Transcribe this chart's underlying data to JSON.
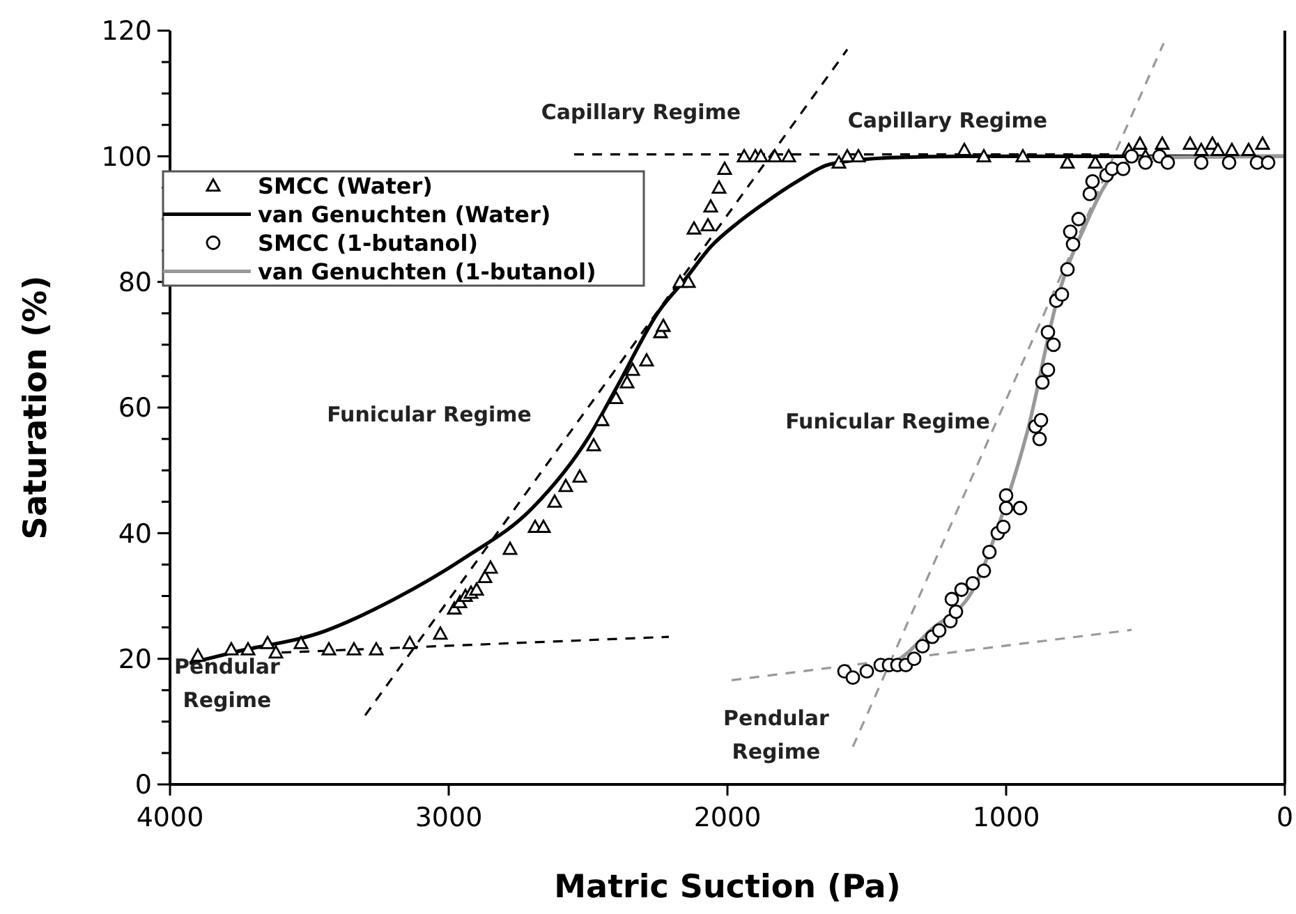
{
  "chart_data": {
    "type": "scatter",
    "xlabel": "Matric Suction (Pa)",
    "ylabel": "Saturation (%)",
    "xlim": [
      4000,
      0
    ],
    "xticks": [
      4000,
      3000,
      2000,
      1000,
      0
    ],
    "ylim": [
      0,
      120
    ],
    "yticks": [
      0,
      {
        "value": 5,
        "label": null
      },
      {
        "value": 10,
        "label": null
      },
      {
        "value": 15,
        "label": null
      },
      20,
      {
        "value": 25,
        "label": null
      },
      {
        "value": 30,
        "label": null
      },
      {
        "value": 35,
        "label": null
      },
      40,
      {
        "value": 45,
        "label": null
      },
      {
        "value": 50,
        "label": null
      },
      {
        "value": 55,
        "label": null
      },
      60,
      {
        "value": 65,
        "label": null
      },
      {
        "value": 70,
        "label": null
      },
      {
        "value": 75,
        "label": null
      },
      80,
      {
        "value": 85,
        "label": null
      },
      {
        "value": 90,
        "label": null
      },
      {
        "value": 95,
        "label": null
      },
      100,
      {
        "value": 105,
        "label": null
      },
      {
        "value": 110,
        "label": null
      },
      {
        "value": 115,
        "label": null
      },
      120
    ],
    "grid": false,
    "legend": "top left",
    "series": [
      {
        "name": "SMCC (Water)",
        "marker": "triangle",
        "color": "#000000",
        "x": [
          3900,
          3780,
          3720,
          3650,
          3620,
          3530,
          3430,
          3340,
          3260,
          3140,
          3030,
          2980,
          2960,
          2940,
          2920,
          2900,
          2870,
          2850,
          2780,
          2690,
          2660,
          2620,
          2580,
          2530,
          2480,
          2450,
          2400,
          2360,
          2340,
          2290,
          2240,
          2230,
          2170,
          2140,
          2120,
          2070,
          2060,
          2030,
          2010,
          1940,
          1900,
          1880,
          1830,
          1780,
          1600,
          1570,
          1530,
          1150,
          1080,
          940,
          780,
          680,
          560,
          520,
          500,
          440,
          340,
          300,
          260,
          240,
          190,
          130,
          80
        ],
        "values": [
          20.5,
          21.5,
          21.5,
          22.5,
          21,
          22.5,
          21.5,
          21.5,
          21.5,
          22.5,
          24,
          28,
          29,
          30,
          30.5,
          31,
          33,
          34.5,
          37.5,
          41,
          41,
          45,
          47.5,
          49,
          54,
          58,
          61.5,
          64,
          66,
          67.5,
          72,
          73,
          80,
          80,
          88.5,
          89,
          92,
          95,
          98,
          100,
          100,
          100,
          100,
          100,
          99,
          100,
          100,
          101,
          100,
          100,
          99,
          99,
          101,
          102,
          100,
          102,
          102,
          101,
          102,
          101,
          101,
          101,
          102
        ]
      },
      {
        "name": "van Genuchten (Water)",
        "type": "line",
        "line_style": "solid",
        "color": "#000000",
        "x": [
          3930,
          3775,
          3445,
          3195,
          2945,
          2700,
          2495,
          2400,
          2245,
          2150,
          2060,
          1960,
          1875,
          1750,
          1625,
          1400,
          1150,
          0
        ],
        "values": [
          19.3,
          21,
          24.4,
          29.5,
          36,
          44,
          55.5,
          63,
          75.4,
          80.5,
          85.6,
          89.5,
          92.3,
          96,
          98.8,
          99.8,
          100,
          100
        ]
      },
      {
        "name": "SMCC (1-butanol)",
        "marker": "circle",
        "color": "#000000",
        "x": [
          1580,
          1550,
          1500,
          1450,
          1420,
          1390,
          1360,
          1330,
          1300,
          1265,
          1240,
          1200,
          1180,
          1195,
          1160,
          1120,
          1080,
          1060,
          1030,
          1010,
          1000,
          1000,
          950,
          880,
          895,
          875,
          870,
          850,
          850,
          830,
          820,
          800,
          780,
          770,
          760,
          740,
          700,
          690,
          640,
          620,
          580,
          550,
          500,
          450,
          420,
          300,
          200,
          100,
          60
        ],
        "values": [
          18,
          17,
          18,
          19,
          19,
          19,
          19,
          20,
          22,
          23.5,
          24.5,
          26,
          27.5,
          29.5,
          31,
          32,
          34,
          37,
          40,
          41,
          44,
          46,
          44,
          55,
          57,
          58,
          64,
          66,
          72,
          70,
          77,
          78,
          82,
          88,
          86,
          90,
          94,
          96,
          97,
          98,
          98,
          100,
          99,
          100,
          99,
          99,
          99,
          99,
          99
        ]
      },
      {
        "name": "van Genuchten (1-butanol)",
        "type": "line",
        "line_style": "solid",
        "color": "#999999",
        "x": [
          1400,
          1375,
          1275,
          1110,
          1010,
          925,
          810,
          710,
          650,
          600,
          500,
          0
        ],
        "values": [
          19.5,
          20.2,
          24.4,
          31.7,
          43.5,
          56,
          78.3,
          89.6,
          95,
          98,
          99.8,
          100
        ]
      },
      {
        "type": "line",
        "line_style": "dashed",
        "color": "#000000",
        "x": [
          3600,
          2210
        ],
        "values": [
          21,
          23.5
        ]
      },
      {
        "type": "line",
        "line_style": "dashed",
        "color": "#000000",
        "x": [
          3300,
          1570
        ],
        "values": [
          11,
          117
        ]
      },
      {
        "type": "line",
        "line_style": "dashed",
        "color": "#000000",
        "x": [
          2550,
          600
        ],
        "values": [
          100.3,
          100.3
        ]
      },
      {
        "type": "line",
        "line_style": "dashed",
        "color": "#999999",
        "x": [
          1985,
          550
        ],
        "values": [
          16.6,
          24.6
        ]
      },
      {
        "type": "line",
        "line_style": "dashed",
        "color": "#999999",
        "x": [
          1550,
          435
        ],
        "values": [
          6,
          118
        ]
      }
    ],
    "annotations": [
      "Capillary Regime",
      "Capillary Regime",
      "Funicular Regime",
      "Funicular Regime",
      "Pendular\nRegime",
      "Pendular\nRegime"
    ]
  }
}
